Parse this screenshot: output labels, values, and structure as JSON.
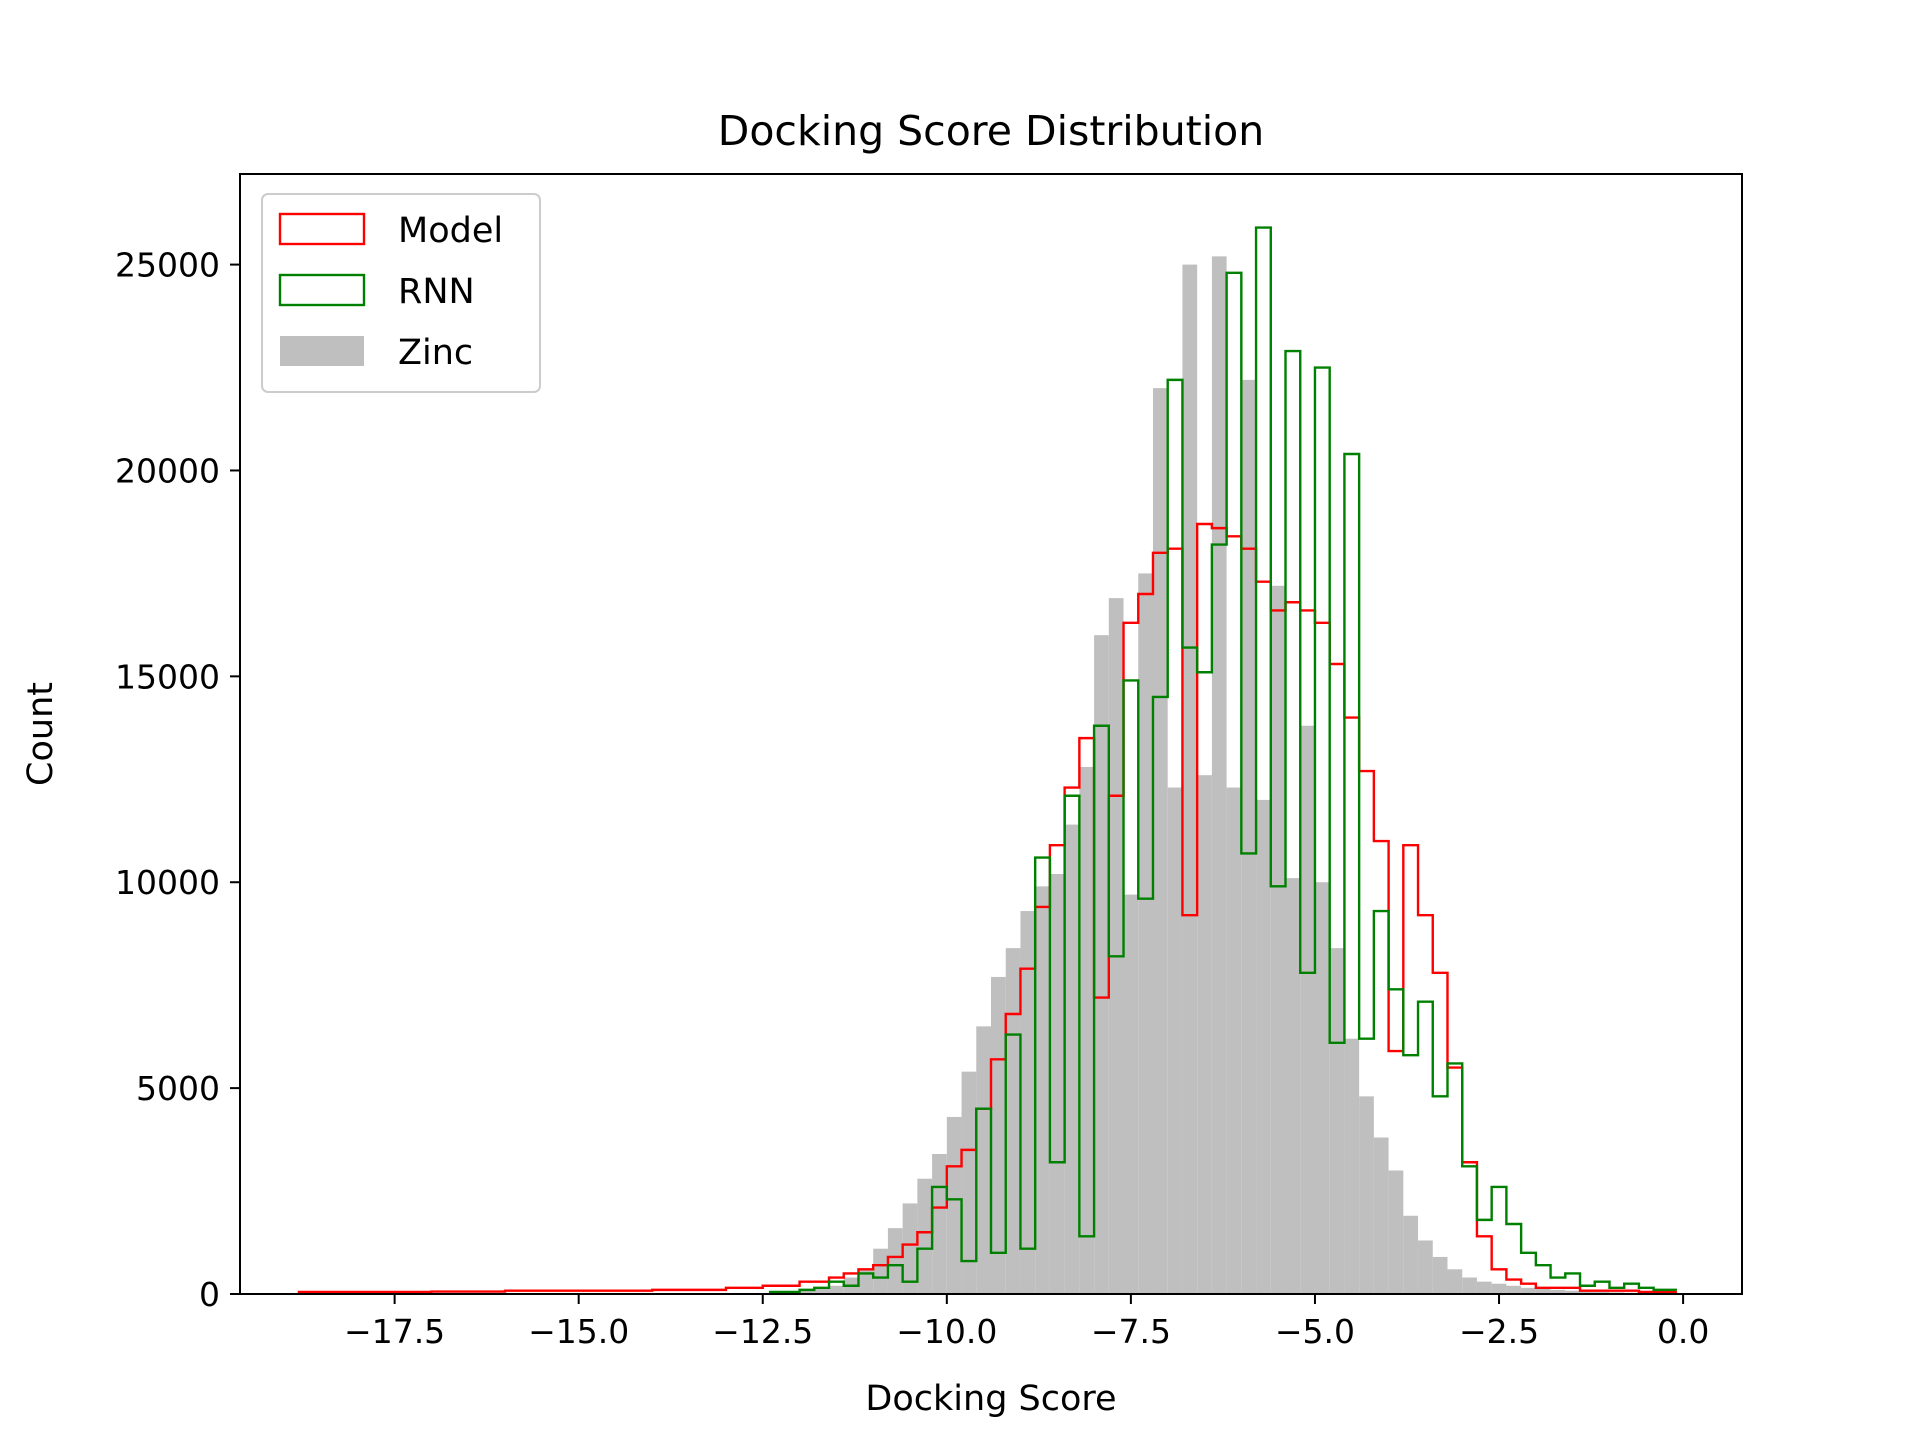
{
  "chart_data": {
    "type": "histogram",
    "title": "Docking Score Distribution",
    "xlabel": "Docking Score",
    "ylabel": "Count",
    "xlim": [
      -19.6,
      0.8
    ],
    "ylim": [
      0,
      27200
    ],
    "xticks": [
      -17.5,
      -15.0,
      -12.5,
      -10.0,
      -7.5,
      -5.0,
      -2.5,
      0.0
    ],
    "xtick_labels": [
      "−17.5",
      "−15.0",
      "−12.5",
      "−10.0",
      "−7.5",
      "−5.0",
      "−2.5",
      "0.0"
    ],
    "yticks": [
      0,
      5000,
      10000,
      15000,
      20000,
      25000
    ],
    "ytick_labels": [
      "0",
      "5000",
      "10000",
      "15000",
      "20000",
      "25000"
    ],
    "grid": false,
    "legend_position": "top-left",
    "series": [
      {
        "name": "Model",
        "style": "step",
        "color": "#ff0000",
        "bin_edges": [
          -18.8,
          -17.0,
          -16.0,
          -14.0,
          -13.0,
          -12.5,
          -12.0,
          -11.6,
          -11.4,
          -11.2,
          -11.0,
          -10.8,
          -10.6,
          -10.4,
          -10.2,
          -10.0,
          -9.8,
          -9.6,
          -9.4,
          -9.2,
          -9.0,
          -8.8,
          -8.6,
          -8.4,
          -8.2,
          -8.0,
          -7.8,
          -7.6,
          -7.4,
          -7.2,
          -7.0,
          -6.8,
          -6.6,
          -6.4,
          -6.2,
          -6.0,
          -5.8,
          -5.6,
          -5.4,
          -5.2,
          -5.0,
          -4.8,
          -4.6,
          -4.4,
          -4.2,
          -4.0,
          -3.8,
          -3.6,
          -3.4,
          -3.2,
          -3.0,
          -2.8,
          -2.6,
          -2.4,
          -2.2,
          -2.0,
          -1.4,
          -0.6,
          -0.1
        ],
        "counts": [
          50,
          60,
          80,
          100,
          150,
          200,
          300,
          400,
          500,
          600,
          700,
          900,
          1200,
          1500,
          2100,
          3100,
          3500,
          4500,
          5700,
          6800,
          7900,
          9400,
          10900,
          12300,
          13500,
          7200,
          12100,
          16300,
          17000,
          18000,
          18100,
          9200,
          18700,
          18600,
          18400,
          18100,
          17300,
          16600,
          16800,
          16600,
          16300,
          15300,
          14000,
          12700,
          11000,
          5900,
          10900,
          9200,
          7800,
          5500,
          3200,
          1400,
          600,
          350,
          250,
          150,
          80,
          50
        ]
      },
      {
        "name": "RNN",
        "style": "step",
        "color": "#008000",
        "bin_edges": [
          -12.4,
          -12.0,
          -11.8,
          -11.6,
          -11.4,
          -11.2,
          -11.0,
          -10.8,
          -10.6,
          -10.4,
          -10.2,
          -10.0,
          -9.8,
          -9.6,
          -9.4,
          -9.2,
          -9.0,
          -8.8,
          -8.6,
          -8.4,
          -8.2,
          -8.0,
          -7.8,
          -7.6,
          -7.4,
          -7.2,
          -7.0,
          -6.8,
          -6.6,
          -6.4,
          -6.2,
          -6.0,
          -5.8,
          -5.6,
          -5.4,
          -5.2,
          -5.0,
          -4.8,
          -4.6,
          -4.4,
          -4.2,
          -4.0,
          -3.8,
          -3.6,
          -3.4,
          -3.2,
          -3.0,
          -2.8,
          -2.6,
          -2.4,
          -2.2,
          -2.0,
          -1.8,
          -1.6,
          -1.4,
          -1.2,
          -1.0,
          -0.8,
          -0.6,
          -0.4,
          -0.1
        ],
        "counts": [
          50,
          100,
          150,
          300,
          200,
          500,
          400,
          700,
          300,
          1100,
          2600,
          2300,
          800,
          4500,
          1000,
          6300,
          1100,
          10600,
          3200,
          12100,
          1400,
          13800,
          8200,
          14900,
          9600,
          14500,
          22200,
          15700,
          15100,
          18200,
          24800,
          10700,
          25900,
          9900,
          22900,
          7800,
          22500,
          6100,
          20400,
          6200,
          9300,
          7400,
          5800,
          7100,
          4800,
          5600,
          3100,
          1800,
          2600,
          1700,
          1000,
          700,
          400,
          500,
          200,
          300,
          150,
          250,
          150,
          100,
          80
        ]
      },
      {
        "name": "Zinc",
        "style": "filled",
        "color": "#bfbfbf",
        "bin_edges": [
          -12.4,
          -12.0,
          -11.8,
          -11.6,
          -11.4,
          -11.2,
          -11.0,
          -10.8,
          -10.6,
          -10.4,
          -10.2,
          -10.0,
          -9.8,
          -9.6,
          -9.4,
          -9.2,
          -9.0,
          -8.8,
          -8.6,
          -8.4,
          -8.2,
          -8.0,
          -7.8,
          -7.6,
          -7.4,
          -7.2,
          -7.0,
          -6.8,
          -6.6,
          -6.4,
          -6.2,
          -6.0,
          -5.8,
          -5.6,
          -5.4,
          -5.2,
          -5.0,
          -4.8,
          -4.6,
          -4.4,
          -4.2,
          -4.0,
          -3.8,
          -3.6,
          -3.4,
          -3.2,
          -3.0,
          -2.8,
          -2.6,
          -2.4,
          -2.2,
          -2.0,
          -1.8,
          -1.6,
          -1.4,
          -1.2,
          -1.0,
          -0.8,
          -0.6,
          -0.4,
          -0.1
        ],
        "counts": [
          50,
          100,
          150,
          200,
          400,
          600,
          1100,
          1600,
          2200,
          2800,
          3400,
          4300,
          5400,
          6500,
          7700,
          8400,
          9300,
          9900,
          10200,
          11400,
          12800,
          16000,
          16900,
          9700,
          17500,
          22000,
          12300,
          25000,
          12600,
          25200,
          12300,
          22200,
          12000,
          17200,
          10100,
          13800,
          10000,
          8400,
          6200,
          4800,
          3800,
          3000,
          1900,
          1300,
          900,
          600,
          400,
          300,
          250,
          200,
          150,
          120,
          100,
          80,
          60,
          50,
          40,
          30,
          30,
          20
        ]
      }
    ]
  }
}
